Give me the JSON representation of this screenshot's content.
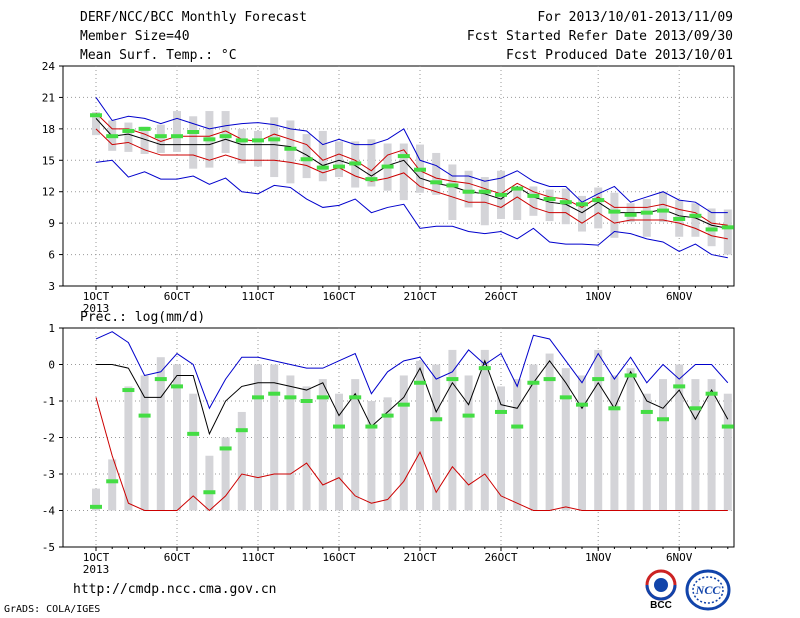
{
  "header": {
    "title": "DERF/NCC/BCC Monthly Forecast",
    "member_size": "Member Size=40",
    "variable": "Mean Surf. Temp.: °C",
    "period": "For 2013/10/01-2013/11/09",
    "start_date": "Fcst Started Refer Date 2013/09/30",
    "produced_date": "Fcst Produced Date 2013/10/01"
  },
  "footer": {
    "url": "http://cmdp.ncc.cma.gov.cn",
    "grads": "GrADS: COLA/IGES",
    "logo_bcc": "BCC",
    "logo_ncc": "NCC"
  },
  "colors": {
    "max_min": "#0000cc",
    "mean": "#000000",
    "spread": "#cc0000",
    "box": "#d4d4d8",
    "median": "#44dd44",
    "grid": "#999999"
  },
  "chart_data": [
    {
      "type": "line",
      "label": "Mean Surf. Temp.: °C",
      "x": [
        "10/01",
        "10/02",
        "10/03",
        "10/04",
        "10/05",
        "10/06",
        "10/07",
        "10/08",
        "10/09",
        "10/10",
        "10/11",
        "10/12",
        "10/13",
        "10/14",
        "10/15",
        "10/16",
        "10/17",
        "10/18",
        "10/19",
        "10/20",
        "10/21",
        "10/22",
        "10/23",
        "10/24",
        "10/25",
        "10/26",
        "10/27",
        "10/28",
        "10/29",
        "10/30",
        "10/31",
        "11/01",
        "11/02",
        "11/03",
        "11/04",
        "11/05",
        "11/06",
        "11/07",
        "11/08",
        "11/09"
      ],
      "x_tick_labels": [
        "1OCT",
        "6OCT",
        "11OCT",
        "16OCT",
        "21OCT",
        "26OCT",
        "1NOV",
        "6NOV"
      ],
      "x_tick_index": [
        0,
        5,
        10,
        15,
        20,
        25,
        31,
        36
      ],
      "year_label": "2013",
      "ylim": [
        3,
        24
      ],
      "y_ticks": [
        3,
        6,
        9,
        12,
        15,
        18,
        21,
        24
      ],
      "grid": true,
      "series": [
        {
          "role": "max",
          "values": [
            21.0,
            18.8,
            19.2,
            19.0,
            18.5,
            19.0,
            18.5,
            18.0,
            18.3,
            18.5,
            18.6,
            18.4,
            18.0,
            17.8,
            16.5,
            17.0,
            16.5,
            16.5,
            17.0,
            18.0,
            15.0,
            14.5,
            13.5,
            13.5,
            13.0,
            13.3,
            14.0,
            13.0,
            12.5,
            12.5,
            11.0,
            11.8,
            12.5,
            11.0,
            11.5,
            12.0,
            11.2,
            11.0,
            10.0,
            10.0
          ]
        },
        {
          "role": "spread_upper",
          "values": [
            19.5,
            18.0,
            18.0,
            17.5,
            16.8,
            17.3,
            17.3,
            17.3,
            17.8,
            17.0,
            16.8,
            17.5,
            17.0,
            16.5,
            15.0,
            15.6,
            15.0,
            14.0,
            15.5,
            16.0,
            14.0,
            13.3,
            13.0,
            12.8,
            12.3,
            11.8,
            12.8,
            12.0,
            11.5,
            11.3,
            10.5,
            11.5,
            10.5,
            10.5,
            10.5,
            10.8,
            10.3,
            10.0,
            9.0,
            8.8
          ]
        },
        {
          "role": "mean",
          "values": [
            19.0,
            17.3,
            17.5,
            17.0,
            16.5,
            16.5,
            16.5,
            16.5,
            17.0,
            16.5,
            16.5,
            16.5,
            16.3,
            15.5,
            14.5,
            15.0,
            14.5,
            13.5,
            14.5,
            15.0,
            13.3,
            12.8,
            12.5,
            12.0,
            11.8,
            11.3,
            12.5,
            11.5,
            11.0,
            10.8,
            10.0,
            11.0,
            10.0,
            10.0,
            10.0,
            10.3,
            9.7,
            9.5,
            8.8,
            8.5
          ]
        },
        {
          "role": "spread_lower",
          "values": [
            18.0,
            16.5,
            16.7,
            16.0,
            15.5,
            15.5,
            15.5,
            15.0,
            15.5,
            15.0,
            15.0,
            15.0,
            14.8,
            14.5,
            13.8,
            14.3,
            13.5,
            13.0,
            13.3,
            13.8,
            12.5,
            12.0,
            11.5,
            11.0,
            11.0,
            10.5,
            11.5,
            10.5,
            10.0,
            10.0,
            9.0,
            10.0,
            9.0,
            9.3,
            9.3,
            9.3,
            9.0,
            8.5,
            7.8,
            7.5
          ]
        },
        {
          "role": "min",
          "values": [
            14.8,
            15.0,
            13.4,
            13.9,
            13.2,
            13.2,
            13.5,
            12.7,
            13.3,
            12.0,
            11.8,
            12.6,
            12.4,
            11.3,
            10.5,
            10.7,
            11.3,
            10.0,
            10.5,
            10.8,
            8.5,
            8.7,
            8.7,
            8.2,
            8.0,
            8.2,
            7.5,
            8.5,
            7.2,
            7.0,
            7.0,
            6.9,
            8.2,
            8.0,
            7.5,
            7.2,
            6.3,
            7.0,
            6.0,
            5.7
          ]
        },
        {
          "role": "median",
          "values": [
            19.3,
            17.3,
            17.8,
            18.0,
            17.3,
            17.3,
            17.7,
            17.0,
            17.3,
            16.9,
            16.9,
            17.0,
            16.1,
            15.1,
            14.3,
            14.4,
            14.7,
            13.2,
            14.4,
            15.4,
            14.1,
            12.9,
            12.6,
            12.0,
            12.0,
            11.7,
            12.3,
            11.6,
            11.3,
            11.0,
            10.8,
            11.2,
            10.1,
            9.8,
            10.0,
            10.2,
            9.4,
            9.7,
            8.4,
            8.6
          ]
        },
        {
          "role": "box_high",
          "values": [
            19.6,
            18.8,
            18.6,
            18.2,
            18.4,
            19.7,
            19.2,
            19.7,
            19.7,
            18.0,
            17.8,
            19.1,
            18.8,
            17.5,
            17.8,
            16.8,
            16.8,
            17.0,
            16.6,
            16.6,
            16.5,
            15.7,
            14.6,
            14.0,
            13.4,
            14.0,
            12.5,
            12.5,
            12.2,
            12.3,
            11.6,
            12.4,
            11.9,
            10.9,
            11.3,
            12.0,
            11.2,
            10.9,
            10.4,
            10.3
          ]
        },
        {
          "role": "box_low",
          "values": [
            17.4,
            15.9,
            15.8,
            15.6,
            15.7,
            15.8,
            14.2,
            14.3,
            15.7,
            14.7,
            14.4,
            13.4,
            12.8,
            13.3,
            13.0,
            13.4,
            12.4,
            12.5,
            12.1,
            11.2,
            11.9,
            11.7,
            9.3,
            10.5,
            8.8,
            9.4,
            9.3,
            9.7,
            9.2,
            8.9,
            8.2,
            8.5,
            7.6,
            9.1,
            7.7,
            9.1,
            7.7,
            7.7,
            6.8,
            6.0
          ]
        }
      ]
    },
    {
      "type": "line",
      "label": "Prec.: log(mm/d)",
      "x_tick_labels": [
        "1OCT",
        "6OCT",
        "11OCT",
        "16OCT",
        "21OCT",
        "26OCT",
        "1NOV",
        "6NOV"
      ],
      "x_tick_index": [
        0,
        5,
        10,
        15,
        20,
        25,
        31,
        36
      ],
      "year_label": "2013",
      "ylim": [
        -5,
        1
      ],
      "y_ticks": [
        -5,
        -4,
        -3,
        -2,
        -1,
        0,
        1
      ],
      "grid": true,
      "series": [
        {
          "role": "max",
          "values": [
            0.7,
            0.9,
            0.6,
            -0.3,
            -0.2,
            0.3,
            0.0,
            -1.2,
            -0.4,
            0.2,
            0.2,
            0.1,
            0.0,
            -0.1,
            -0.1,
            0.1,
            0.3,
            -0.8,
            -0.2,
            0.1,
            0.2,
            -0.4,
            -0.2,
            0.4,
            0.0,
            0.3,
            -0.6,
            0.8,
            0.7,
            0.1,
            -0.5,
            0.3,
            -0.4,
            0.2,
            -0.5,
            0.0,
            -0.4,
            0.0,
            0.0,
            -0.5
          ]
        },
        {
          "role": "mean",
          "values": [
            0.0,
            0.0,
            -0.1,
            -0.9,
            -0.9,
            -0.3,
            -0.3,
            -1.9,
            -1.0,
            -0.6,
            -0.5,
            -0.5,
            -0.6,
            -0.7,
            -0.5,
            -1.4,
            -0.8,
            -1.7,
            -1.3,
            -0.9,
            -0.1,
            -1.3,
            -0.5,
            -1.1,
            0.1,
            -1.1,
            -1.2,
            -0.5,
            0.1,
            -0.5,
            -1.2,
            -0.5,
            -1.2,
            -0.2,
            -1.0,
            -1.2,
            -0.7,
            -1.5,
            -0.7,
            -1.5
          ]
        },
        {
          "role": "min",
          "values": [
            -0.9,
            -2.5,
            -3.8,
            -4.0,
            -4.0,
            -4.0,
            -3.6,
            -4.0,
            -3.6,
            -3.0,
            -3.1,
            -3.0,
            -3.0,
            -2.7,
            -3.3,
            -3.1,
            -3.6,
            -3.8,
            -3.7,
            -3.2,
            -2.4,
            -3.5,
            -2.8,
            -3.3,
            -3.0,
            -3.6,
            -3.8,
            -4.0,
            -4.0,
            -3.9,
            -4.0,
            -4.0,
            -4.0,
            -4.0,
            -4.0,
            -4.0,
            -4.0,
            -4.0,
            -4.0,
            -4.0
          ]
        },
        {
          "role": "median",
          "values": [
            -3.9,
            -3.2,
            -0.7,
            -1.4,
            -0.4,
            -0.6,
            -1.9,
            -3.5,
            -2.3,
            -1.8,
            -0.9,
            -0.8,
            -0.9,
            -1.0,
            -0.9,
            -1.7,
            -0.9,
            -1.7,
            -1.4,
            -1.1,
            -0.5,
            -1.5,
            -0.4,
            -1.4,
            -0.1,
            -1.3,
            -1.7,
            -0.5,
            -0.4,
            -0.9,
            -1.1,
            -0.4,
            -1.2,
            -0.3,
            -1.3,
            -1.5,
            -0.6,
            -1.2,
            -0.8,
            -1.7
          ]
        },
        {
          "role": "box_high",
          "values": [
            -3.4,
            -2.6,
            -0.6,
            -0.3,
            0.2,
            0.0,
            -0.8,
            -2.5,
            -2.0,
            -1.3,
            0.0,
            0.0,
            -0.3,
            -0.6,
            -0.4,
            -0.8,
            -0.4,
            -1.0,
            -0.9,
            -0.3,
            0.1,
            0.0,
            0.4,
            -0.3,
            0.4,
            -0.6,
            -0.4,
            0.0,
            0.3,
            -0.1,
            -0.3,
            0.4,
            -0.3,
            -0.1,
            -0.8,
            -0.4,
            0.0,
            -0.4,
            -0.4,
            -0.8
          ]
        },
        {
          "role": "box_low",
          "values": [
            -4.0,
            -4.0,
            -4.0,
            -4.0,
            -4.0,
            -4.0,
            -4.0,
            -4.0,
            -4.0,
            -4.0,
            -4.0,
            -4.0,
            -4.0,
            -4.0,
            -4.0,
            -4.0,
            -4.0,
            -4.0,
            -4.0,
            -4.0,
            -4.0,
            -4.0,
            -4.0,
            -4.0,
            -4.0,
            -4.0,
            -4.0,
            -4.0,
            -4.0,
            -4.0,
            -4.0,
            -4.0,
            -4.0,
            -4.0,
            -4.0,
            -4.0,
            -4.0,
            -4.0,
            -4.0,
            -4.0
          ]
        }
      ]
    }
  ]
}
